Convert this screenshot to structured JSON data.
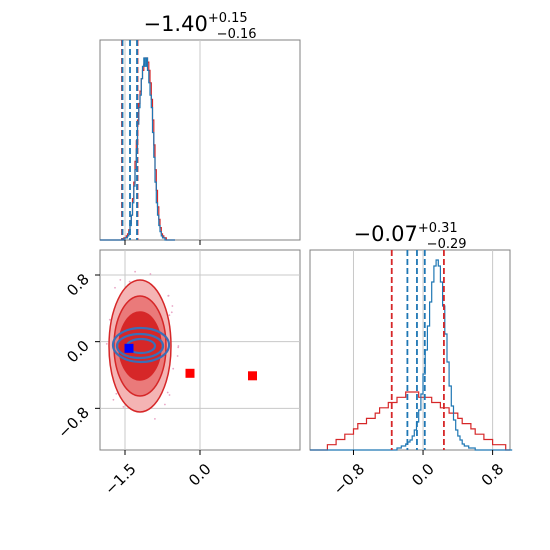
{
  "chart_data": {
    "type": "corner",
    "style": {
      "grid": true,
      "colors": {
        "red": "#d62728",
        "blue": "#1f77b4",
        "marker_red": "#ff0000",
        "marker_blue": "#0000ff",
        "axes": "#808080",
        "grid": "#c8c8c8"
      }
    },
    "param1": {
      "title": {
        "median": "−1.40",
        "plus": "+0.15",
        "minus": "−0.16"
      },
      "xlim": [
        -2.0,
        2.0
      ],
      "xticks": [
        {
          "value": -1.5,
          "label": "−1.5"
        },
        {
          "value": 0.0,
          "label": "0.0"
        }
      ],
      "quantiles_red": [
        -1.56,
        -1.25
      ],
      "quantiles_blue": [
        -1.55,
        -1.26
      ],
      "median_blue": -1.4
    },
    "param2": {
      "title": {
        "median": "−0.07",
        "plus": "+0.31",
        "minus": "−0.29"
      },
      "xlim": [
        -1.3,
        1.0
      ],
      "xticks": [
        {
          "value": -0.8,
          "label": "−0.8"
        },
        {
          "value": 0.0,
          "label": "0.0"
        },
        {
          "value": 0.8,
          "label": "0.8"
        }
      ],
      "quantiles_red": [
        -0.36,
        0.24
      ],
      "quantiles_blue": [
        -0.18,
        0.02
      ],
      "median_blue": -0.07
    },
    "joint": {
      "xlim": [
        -2.0,
        2.0
      ],
      "ylim": [
        -1.3,
        1.1
      ],
      "yticks": [
        {
          "value": 0.8,
          "label": "0.8"
        },
        {
          "value": 0.0,
          "label": "0.0"
        },
        {
          "value": -0.8,
          "label": "−0.8"
        }
      ],
      "markers": [
        {
          "x": -1.42,
          "y": -0.08,
          "color": "#0000ff"
        },
        {
          "x": -0.2,
          "y": -0.38,
          "color": "#ff0000"
        },
        {
          "x": 1.05,
          "y": -0.41,
          "color": "#ff0000"
        }
      ]
    },
    "hist1_red": {
      "x0": -2.0,
      "bin": 0.025,
      "counts": [
        0,
        0,
        0,
        0,
        0,
        0,
        0,
        0,
        0,
        0,
        0,
        0,
        0,
        0,
        0,
        0,
        0,
        0,
        0,
        1,
        1,
        2,
        3,
        5,
        8,
        12,
        20,
        28,
        38,
        48,
        58,
        66,
        72,
        78,
        82,
        85,
        88,
        88,
        86,
        82,
        76,
        68,
        58,
        46,
        34,
        24,
        16,
        10,
        6,
        3,
        2,
        1,
        1,
        0,
        0,
        0,
        0,
        0,
        0,
        0
      ]
    },
    "hist1_blue": {
      "x0": -2.0,
      "bin": 0.025,
      "counts": [
        0,
        0,
        0,
        0,
        0,
        0,
        0,
        0,
        0,
        0,
        0,
        0,
        0,
        0,
        0,
        0,
        0,
        0,
        0,
        0,
        1,
        1,
        2,
        4,
        7,
        12,
        18,
        26,
        34,
        44,
        56,
        64,
        70,
        78,
        84,
        88,
        84,
        88,
        82,
        76,
        70,
        64,
        52,
        40,
        28,
        18,
        12,
        7,
        4,
        2,
        1,
        1,
        0,
        0,
        0,
        0,
        0,
        0,
        0,
        0
      ]
    },
    "hist2_red": {
      "x0": -1.3,
      "bin": 0.05,
      "counts": [
        0,
        0,
        0,
        0,
        1,
        1,
        2,
        2,
        3,
        3,
        4,
        5,
        5,
        6,
        6,
        7,
        8,
        8,
        9,
        9,
        10,
        10,
        11,
        11,
        11,
        10,
        10,
        10,
        9,
        9,
        8,
        8,
        7,
        7,
        6,
        5,
        5,
        4,
        3,
        3,
        2,
        2,
        1,
        1,
        1,
        0
      ]
    },
    "hist2_blue": {
      "x0": -1.3,
      "bin": 0.025,
      "counts": [
        0,
        0,
        0,
        0,
        0,
        0,
        0,
        0,
        0,
        0,
        0,
        0,
        0,
        0,
        0,
        0,
        0,
        0,
        0,
        0,
        0,
        0,
        0,
        0,
        0,
        0,
        0,
        0,
        0,
        0,
        0,
        0,
        0,
        0,
        0,
        0,
        0,
        0,
        0,
        0,
        1,
        1,
        2,
        2,
        3,
        4,
        5,
        7,
        10,
        14,
        20,
        28,
        38,
        50,
        62,
        74,
        84,
        92,
        95,
        92,
        84,
        72,
        58,
        44,
        32,
        22,
        15,
        10,
        7,
        5,
        3,
        2,
        2,
        1,
        1,
        1,
        0,
        0,
        0,
        0,
        0,
        0,
        0,
        0,
        0,
        0,
        0,
        0,
        0,
        0,
        0,
        0,
        0
      ]
    }
  }
}
